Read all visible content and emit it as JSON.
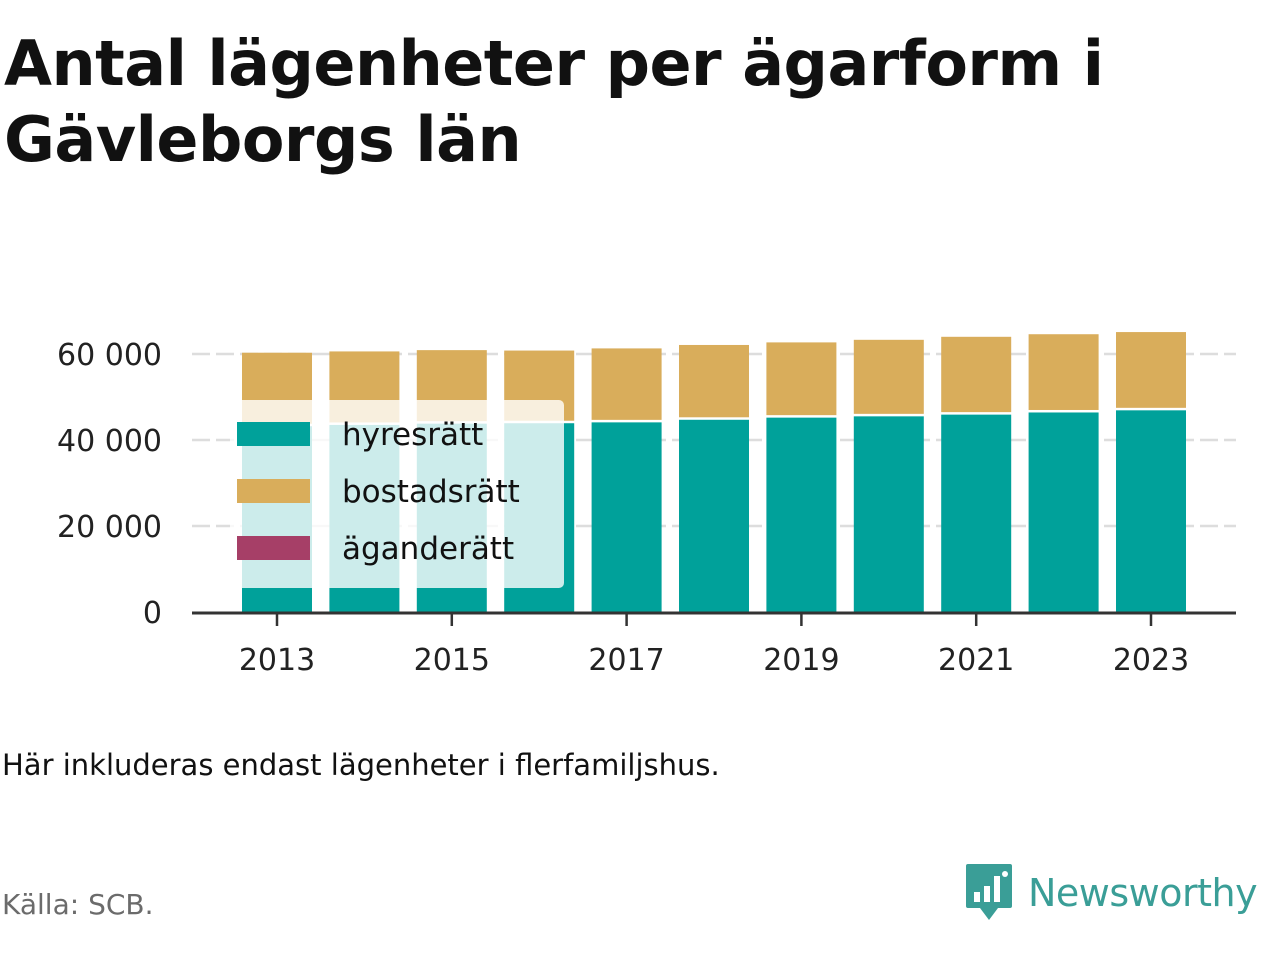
{
  "chart_data": {
    "type": "bar",
    "stacked": true,
    "title": "Antal lägenheter per ägarform i Gävleborgs län",
    "xlabel": "",
    "ylabel": "",
    "x": [
      2013,
      2014,
      2015,
      2016,
      2017,
      2018,
      2019,
      2020,
      2021,
      2022,
      2023
    ],
    "x_tick_labels": [
      "2013",
      "2015",
      "2017",
      "2019",
      "2021",
      "2023"
    ],
    "y_tick_labels": [
      "0",
      "20 000",
      "40 000",
      "60 000"
    ],
    "y_ticks": [
      0,
      20000,
      40000,
      60000
    ],
    "ylim": [
      0,
      65000
    ],
    "grid": true,
    "legend_position": "top-left",
    "series": [
      {
        "name": "hyresrätt",
        "color": "#00a19a",
        "values": [
          43200,
          43500,
          43800,
          43900,
          44100,
          44700,
          45200,
          45500,
          45900,
          46400,
          46900
        ]
      },
      {
        "name": "bostadsrätt",
        "color": "#d9ad5b",
        "values": [
          17100,
          17100,
          17100,
          16900,
          17200,
          17400,
          17500,
          17800,
          18100,
          18200,
          18200
        ]
      },
      {
        "name": "äganderätt",
        "color": "#a63f67",
        "values": [
          0,
          0,
          0,
          0,
          0,
          0,
          0,
          0,
          0,
          0,
          0
        ]
      }
    ]
  },
  "note": "Här inkluderas endast lägenheter i flerfamiljshus.",
  "source": "Källa: SCB.",
  "brand": {
    "name": "Newsworthy",
    "icon": "newsworthy-logo-icon",
    "color": "#3a9e97"
  }
}
